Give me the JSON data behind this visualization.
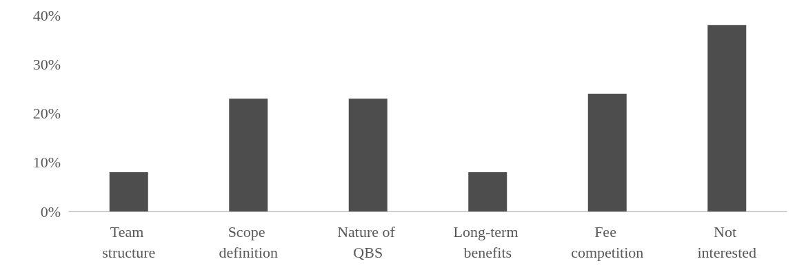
{
  "chart_data": {
    "type": "bar",
    "categories": [
      "Team structure",
      "Scope definition",
      "Nature of QBS",
      "Long-term benefits",
      "Fee competition",
      "Not interested"
    ],
    "values": [
      8,
      23,
      23,
      8,
      24,
      38
    ],
    "color": "#4d4d4d",
    "ylim": [
      0,
      40
    ],
    "yticks": [
      {
        "value": 0,
        "label": "0%"
      },
      {
        "value": 10,
        "label": "10%"
      },
      {
        "value": 20,
        "label": "20%"
      },
      {
        "value": 30,
        "label": "30%"
      },
      {
        "value": 40,
        "label": "40%"
      }
    ],
    "grid": false
  }
}
